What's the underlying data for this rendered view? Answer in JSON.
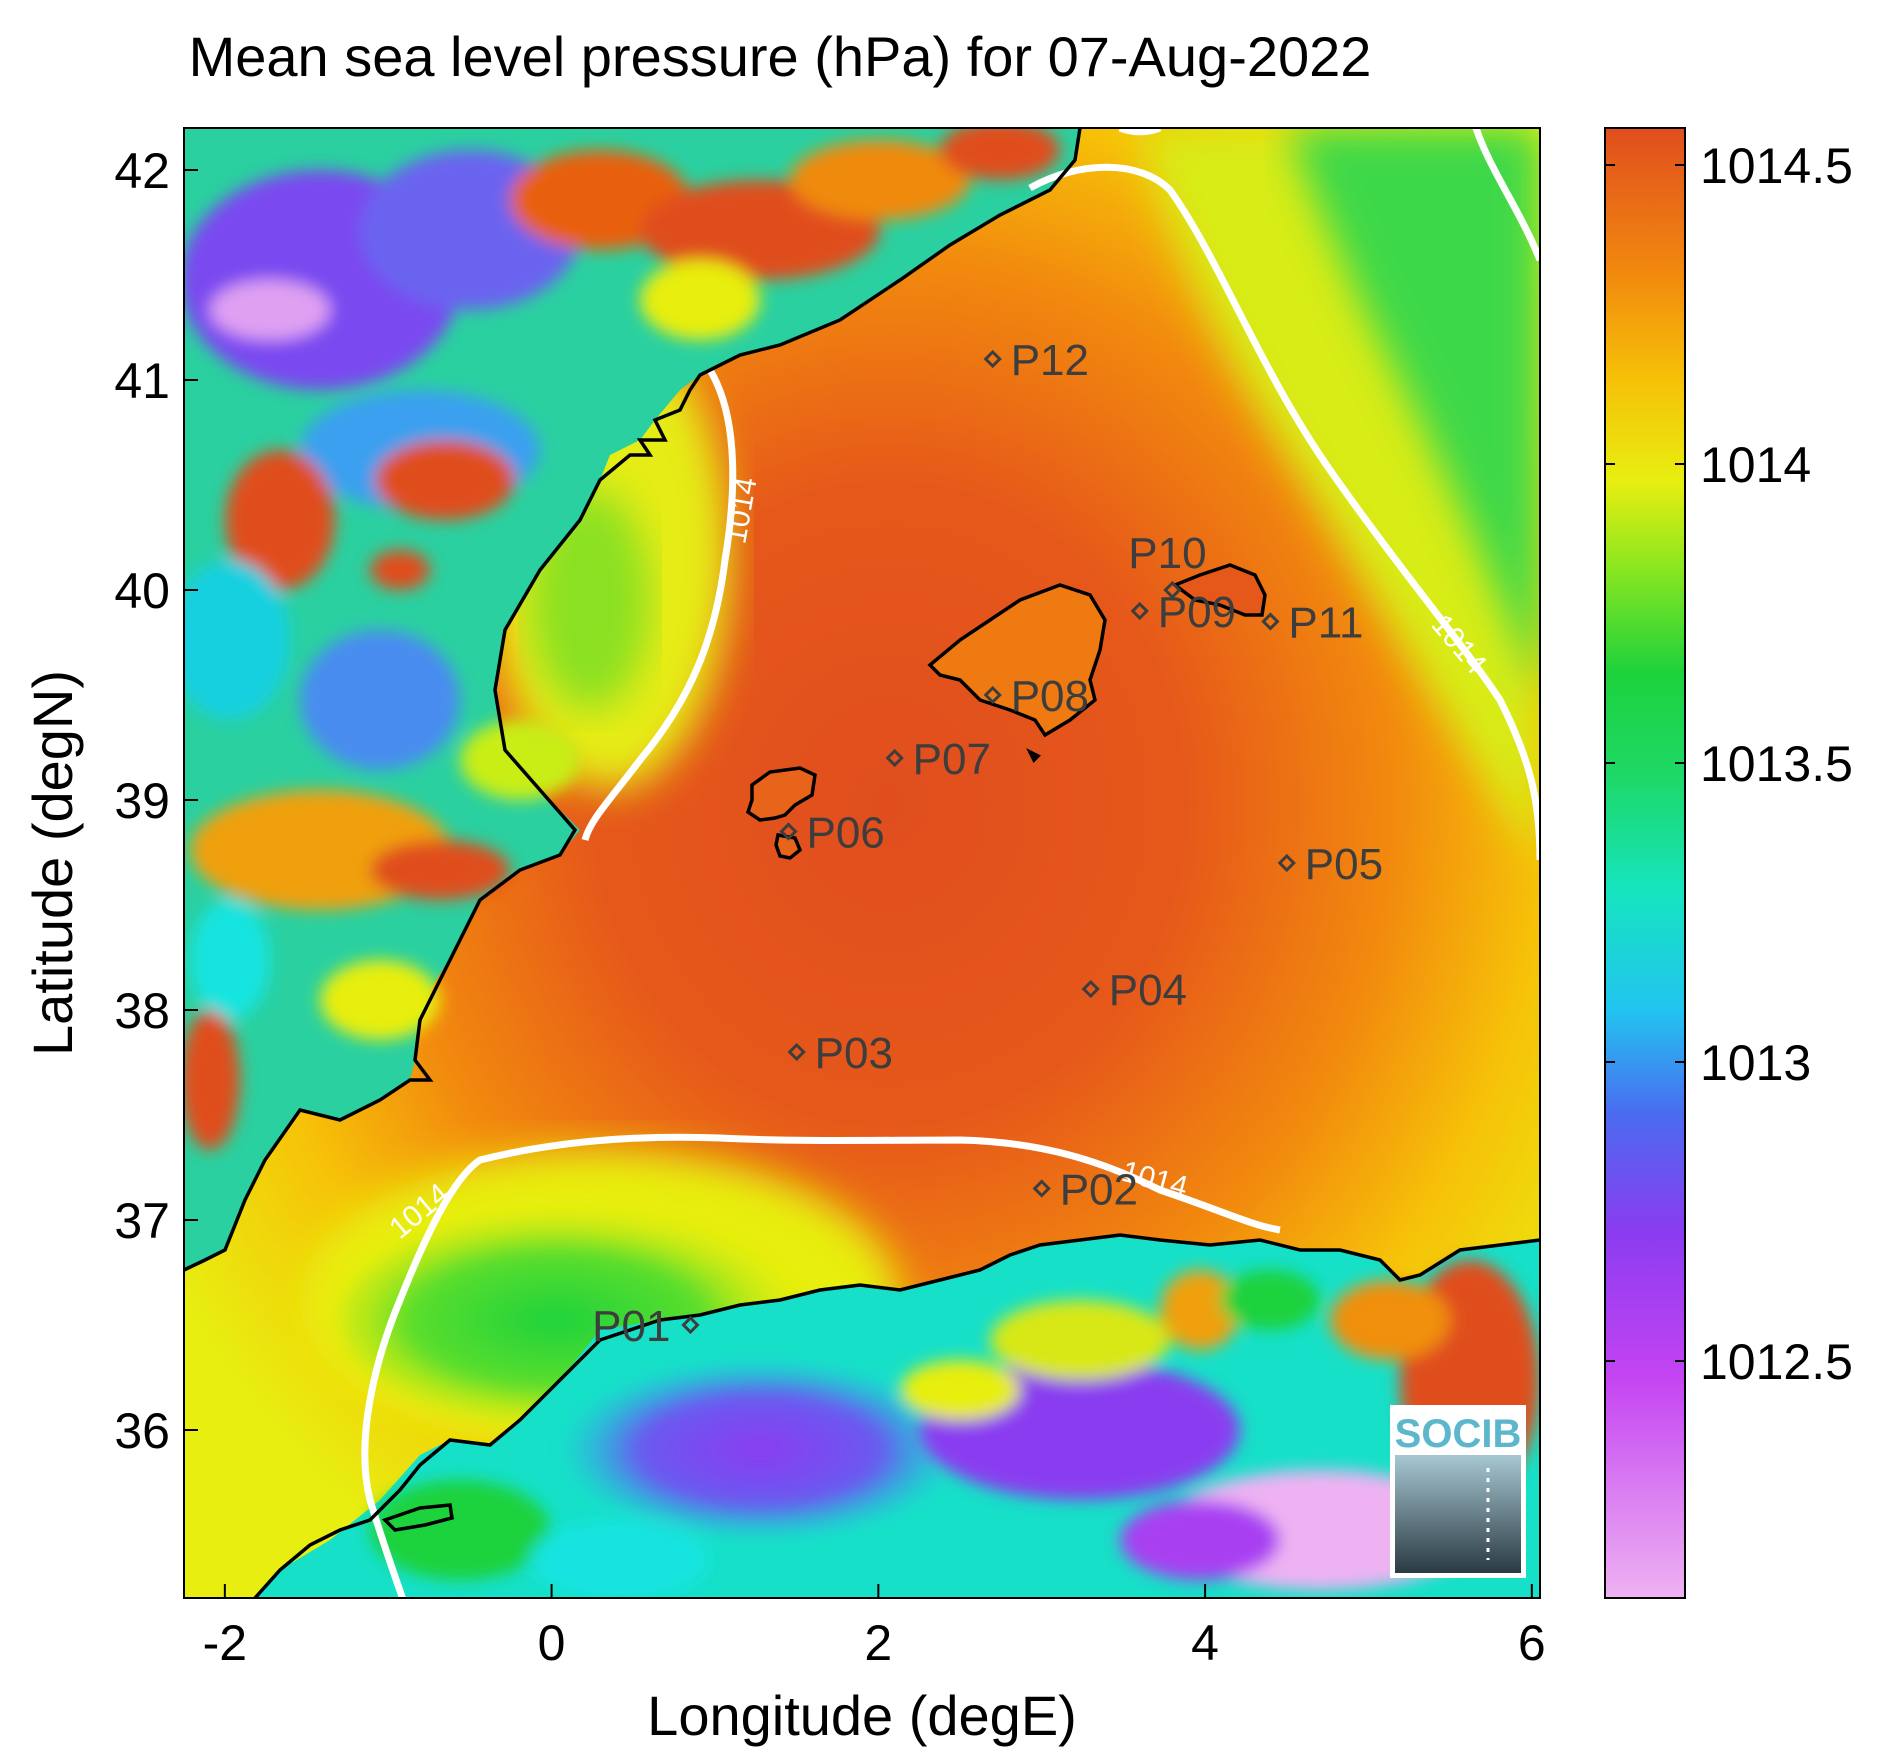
{
  "title": "Mean sea level pressure (hPa) for 07-Aug-2022",
  "axes": {
    "xlabel": "Longitude (degE)",
    "ylabel": "Latitude (degN)",
    "xticks": [
      "-2",
      "0",
      "2",
      "4",
      "6"
    ],
    "yticks": [
      "36",
      "37",
      "38",
      "39",
      "40",
      "41",
      "42"
    ]
  },
  "colorbar": {
    "ticks": [
      "1012.5",
      "1013",
      "1013.5",
      "1014",
      "1014.5"
    ],
    "colors": [
      "#eeb2f2",
      "#c444f2",
      "#8a3cf0",
      "#3a7cf0",
      "#16e4e0",
      "#1ed23c",
      "#d6ee10",
      "#f6d006",
      "#f69a06",
      "#ec6212",
      "#e04e1e"
    ]
  },
  "contour": {
    "level_label": "1014",
    "color": "#ffffff"
  },
  "stations": [
    {
      "id": "P01",
      "lon": 0.85,
      "lat": 36.5
    },
    {
      "id": "P02",
      "lon": 3.0,
      "lat": 37.15
    },
    {
      "id": "P03",
      "lon": 1.5,
      "lat": 37.8
    },
    {
      "id": "P04",
      "lon": 3.3,
      "lat": 38.1
    },
    {
      "id": "P05",
      "lon": 4.5,
      "lat": 38.7
    },
    {
      "id": "P06",
      "lon": 1.45,
      "lat": 38.85
    },
    {
      "id": "P07",
      "lon": 2.1,
      "lat": 39.2
    },
    {
      "id": "P08",
      "lon": 2.7,
      "lat": 39.5
    },
    {
      "id": "P09",
      "lon": 3.6,
      "lat": 39.9
    },
    {
      "id": "P10",
      "lon": 3.8,
      "lat": 40.0
    },
    {
      "id": "P11",
      "lon": 4.4,
      "lat": 39.85
    },
    {
      "id": "P12",
      "lon": 2.7,
      "lat": 41.1
    }
  ],
  "logo": {
    "text": "SOCIB"
  },
  "ranges": {
    "lon": [
      -2.25,
      6.05
    ],
    "lat": [
      35.2,
      42.2
    ]
  },
  "colors": {
    "sea_max": "#e04e1e",
    "coast": "#000000",
    "station_marker": "#3d3d3d"
  }
}
